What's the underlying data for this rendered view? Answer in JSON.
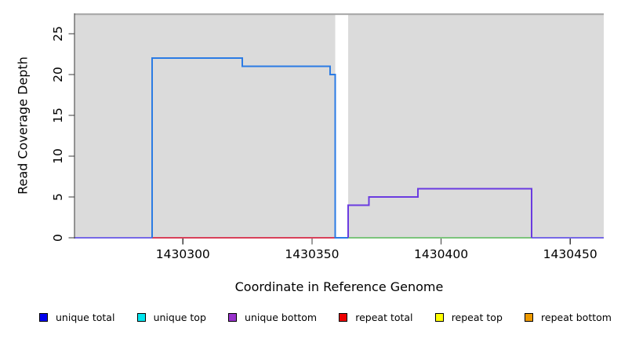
{
  "chart_data": {
    "type": "line",
    "subtype": "step-coverage-plot",
    "title": "",
    "xlabel": "Coordinate in Reference Genome",
    "ylabel": "Read Coverage Depth",
    "xlim": [
      1430258,
      1430463
    ],
    "ylim": [
      0,
      27.5
    ],
    "grid": false,
    "legend_position": "bottom",
    "x_ticks": [
      1430300,
      1430350,
      1430400,
      1430450
    ],
    "x_tick_labels": [
      "1430300",
      "1430350",
      "1430400",
      "1430450"
    ],
    "y_ticks": [
      0,
      5,
      10,
      15,
      20,
      25
    ],
    "y_tick_labels": [
      "0",
      "5",
      "10",
      "15",
      "20",
      "25"
    ],
    "background": "#DBDBDB",
    "top_edge_color": "#ABABAB",
    "axis_color": "#3A3A3A",
    "gap_region": {
      "x0": 1430359,
      "x1": 1430364,
      "color": "#FFFFFF",
      "note": "vertical white band, no data"
    },
    "series": [
      {
        "id": "repeat-total-baseline",
        "name": "repeat total zero baseline",
        "color": "#D8415A",
        "width": 1.8,
        "paths": [
          [
            [
              1430288,
              0
            ],
            [
              1430359,
              0
            ]
          ]
        ]
      },
      {
        "id": "green-overlap-baseline",
        "name": "green zero baseline (right block)",
        "color": "#7CC47C",
        "width": 1.8,
        "paths": [
          [
            [
              1430364,
              0
            ],
            [
              1430435,
              0
            ]
          ]
        ]
      },
      {
        "id": "unique-overlap-baseline",
        "name": "unique zero baseline (plot ends)",
        "color": "#7668E6",
        "width": 1.8,
        "paths": [
          [
            [
              1430258,
              0
            ],
            [
              1430288,
              0
            ]
          ],
          [
            [
              1430435,
              0
            ],
            [
              1430463,
              0
            ]
          ]
        ]
      },
      {
        "id": "unique-total",
        "name": "unique total",
        "color": "#2B7BE4",
        "width": 2,
        "paths": [
          [
            [
              1430288,
              0
            ],
            [
              1430288,
              22
            ],
            [
              1430323,
              22
            ],
            [
              1430323,
              21
            ],
            [
              1430357,
              21
            ],
            [
              1430357,
              20
            ],
            [
              1430359,
              20
            ],
            [
              1430359,
              0
            ],
            [
              1430364,
              0
            ]
          ]
        ]
      },
      {
        "id": "unique-bottom",
        "name": "unique bottom",
        "color": "#6A3BE0",
        "width": 2,
        "paths": [
          [
            [
              1430364,
              0
            ],
            [
              1430364,
              4
            ],
            [
              1430372,
              4
            ],
            [
              1430372,
              5
            ],
            [
              1430391,
              5
            ],
            [
              1430391,
              6
            ],
            [
              1430435,
              6
            ],
            [
              1430435,
              0
            ]
          ]
        ]
      }
    ],
    "legend": [
      {
        "label": "unique total",
        "color": "#0000EE"
      },
      {
        "label": "unique top",
        "color": "#00E5EE"
      },
      {
        "label": "unique bottom",
        "color": "#9932CC"
      },
      {
        "label": "repeat total",
        "color": "#EE0000"
      },
      {
        "label": "repeat top",
        "color": "#FFFF00"
      },
      {
        "label": "repeat bottom",
        "color": "#EE9A00"
      }
    ]
  }
}
